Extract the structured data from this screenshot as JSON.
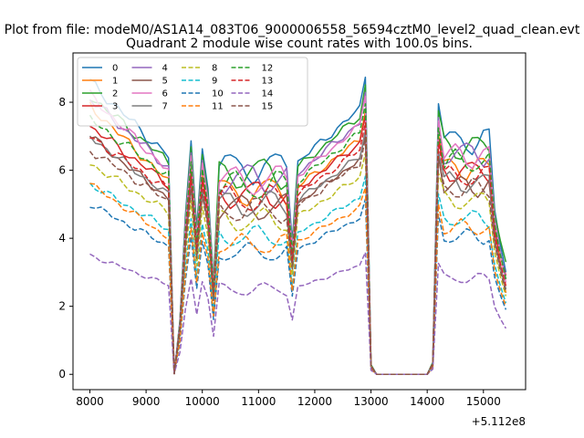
{
  "chart_data": {
    "type": "line",
    "suptitle": "Plot from file: modeM0/AS1A14_083T06_9000006558_56594cztM0_level2_quad_clean.evt",
    "title": "Quadrant 2 module wise count rates with 100.0s bins.",
    "xlabel": "",
    "ylabel": "",
    "x_offset_label": "+5.112e8",
    "xlim": [
      7700,
      15750
    ],
    "ylim": [
      -0.45,
      9.45
    ],
    "xticks": [
      8000,
      9000,
      10000,
      11000,
      12000,
      13000,
      14000,
      15000
    ],
    "xtick_labels": [
      "8000",
      "9000",
      "10000",
      "11000",
      "12000",
      "13000",
      "14000",
      "15000"
    ],
    "yticks": [
      0,
      2,
      4,
      6,
      8
    ],
    "ytick_labels": [
      "0",
      "2",
      "4",
      "6",
      "8"
    ],
    "legend_position": "top-left",
    "x_segments": [
      {
        "start": 8000,
        "end": 9500,
        "step": 100
      },
      {
        "start": 9500,
        "end": 11600,
        "step": 100
      },
      {
        "start": 11600,
        "end": 12900,
        "step": 100
      },
      {
        "start": 12900,
        "end": 14200,
        "step": 100
      },
      {
        "start": 14200,
        "end": 15400,
        "step": 100
      }
    ],
    "series": [
      {
        "name": "0",
        "color": "#1f77b4",
        "dash": "solid",
        "level": 7.8,
        "start": 8.6,
        "end": 3.0,
        "mid": 0.7
      },
      {
        "name": "1",
        "color": "#ff7f0e",
        "dash": "solid",
        "level": 6.9,
        "start": 7.9,
        "end": 2.4,
        "mid": 0.6
      },
      {
        "name": "2",
        "color": "#2ca02c",
        "dash": "solid",
        "level": 7.6,
        "start": 8.2,
        "end": 3.3,
        "mid": 0.7
      },
      {
        "name": "3",
        "color": "#d62728",
        "dash": "solid",
        "level": 6.8,
        "start": 7.3,
        "end": 2.9,
        "mid": 0.6
      },
      {
        "name": "4",
        "color": "#9467bd",
        "dash": "solid",
        "level": 7.4,
        "start": 8.1,
        "end": 2.8,
        "mid": 0.6
      },
      {
        "name": "5",
        "color": "#8c564b",
        "dash": "solid",
        "level": 6.3,
        "start": 7.0,
        "end": 2.5,
        "mid": 0.6
      },
      {
        "name": "6",
        "color": "#e377c2",
        "dash": "solid",
        "level": 7.3,
        "start": 8.2,
        "end": 2.7,
        "mid": 0.6
      },
      {
        "name": "7",
        "color": "#7f7f7f",
        "dash": "solid",
        "level": 6.4,
        "start": 7.0,
        "end": 2.5,
        "mid": 0.6
      },
      {
        "name": "8",
        "color": "#bcbd22",
        "dash": "dashed",
        "level": 5.8,
        "start": 6.2,
        "end": 2.3,
        "mid": 0.5
      },
      {
        "name": "9",
        "color": "#17becf",
        "dash": "dashed",
        "level": 5.2,
        "start": 5.6,
        "end": 2.1,
        "mid": 0.5
      },
      {
        "name": "10",
        "color": "#1f77b4",
        "dash": "dashed",
        "level": 4.6,
        "start": 5.0,
        "end": 1.9,
        "mid": 0.4
      },
      {
        "name": "11",
        "color": "#ff7f0e",
        "dash": "dashed",
        "level": 4.9,
        "start": 5.6,
        "end": 2.0,
        "mid": 0.4
      },
      {
        "name": "12",
        "color": "#2ca02c",
        "dash": "dashed",
        "level": 7.1,
        "start": 7.5,
        "end": 2.8,
        "mid": 0.6
      },
      {
        "name": "13",
        "color": "#d62728",
        "dash": "dashed",
        "level": 6.6,
        "start": 7.0,
        "end": 2.6,
        "mid": 0.6
      },
      {
        "name": "14",
        "color": "#9467bd",
        "dash": "dashed",
        "level": 3.2,
        "start": 3.5,
        "end": 1.35,
        "mid": 0.3
      },
      {
        "name": "15",
        "color": "#8c564b",
        "dash": "dashed",
        "level": 6.2,
        "start": 6.6,
        "end": 2.4,
        "mid": 0.55
      }
    ]
  }
}
